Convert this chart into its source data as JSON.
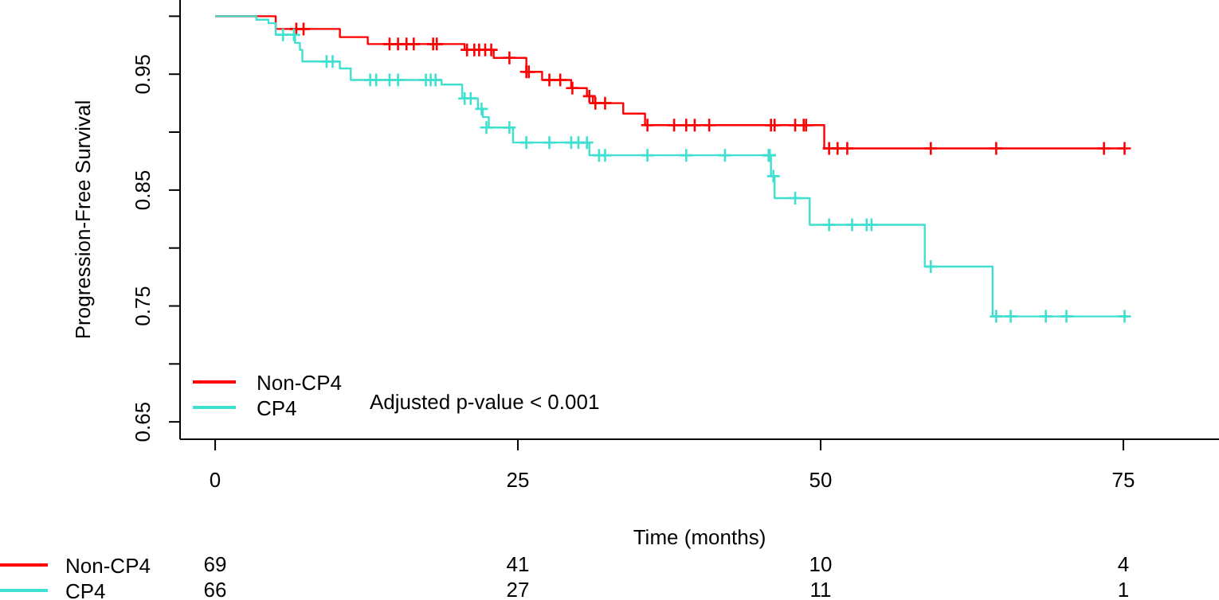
{
  "chart_data": {
    "type": "step",
    "xlabel": "Time (months)",
    "ylabel": "Progression-Free Survival",
    "xlim": [
      -2.9,
      82.9
    ],
    "xticks": [
      0,
      25,
      50,
      75
    ],
    "ylim": [
      0.635,
      1.014
    ],
    "yticks": [
      0.65,
      {
        "value": 0.7,
        "label": null
      },
      0.75,
      {
        "value": 0.8,
        "label": null
      },
      0.85,
      {
        "value": 0.9,
        "label": null
      },
      0.95,
      {
        "value": 1.0,
        "label": null
      }
    ],
    "legend": "bottom left",
    "grid": false,
    "line_style": "solid",
    "series": [
      {
        "name": "Non-CP4",
        "color": "#ff0000",
        "marker": "none",
        "x": [
          0,
          5.0,
          10.3,
          12.6,
          20.6,
          23.0,
          25.7,
          27.0,
          29.4,
          30.7,
          31.2,
          33.7,
          35.5,
          50.3,
          75.1
        ],
        "values": [
          1.0,
          0.989,
          0.982,
          0.976,
          0.971,
          0.964,
          0.952,
          0.945,
          0.938,
          0.931,
          0.925,
          0.916,
          0.906,
          0.886,
          0.886
        ]
      },
      {
        "name": "CP4",
        "color": "#40e0d0",
        "marker": "none",
        "x": [
          0,
          3.4,
          4.4,
          5.0,
          6.6,
          7.0,
          7.2,
          10.3,
          11.2,
          18.7,
          20.4,
          21.7,
          22.1,
          22.6,
          24.6,
          30.9,
          45.9,
          46.2,
          49.1,
          58.6,
          64.2,
          75.1
        ],
        "values": [
          1.0,
          0.997,
          0.994,
          0.984,
          0.977,
          0.971,
          0.961,
          0.955,
          0.945,
          0.941,
          0.929,
          0.92,
          0.913,
          0.904,
          0.891,
          0.88,
          0.862,
          0.843,
          0.82,
          0.784,
          0.741,
          0.741
        ]
      },
      {
        "color": "#ff0000",
        "type": "scatter",
        "marker": "cross",
        "x": [
          6.7,
          7.3,
          14.4,
          15.1,
          15.8,
          16.4,
          18.0,
          18.3,
          20.8,
          21.4,
          21.8,
          22.3,
          22.8,
          24.3,
          25.7,
          25.9,
          27.6,
          28.5,
          29.5,
          30.9,
          31.4,
          32.2,
          35.7,
          37.9,
          38.9,
          39.6,
          40.8,
          45.9,
          46.2,
          47.9,
          48.6,
          48.8,
          50.7,
          51.4,
          52.2,
          59.1,
          64.5,
          73.4,
          75.1
        ],
        "values": [
          0.989,
          0.989,
          0.976,
          0.976,
          0.976,
          0.976,
          0.976,
          0.976,
          0.971,
          0.971,
          0.971,
          0.971,
          0.971,
          0.964,
          0.952,
          0.952,
          0.945,
          0.945,
          0.938,
          0.931,
          0.925,
          0.925,
          0.906,
          0.906,
          0.906,
          0.906,
          0.906,
          0.906,
          0.906,
          0.906,
          0.906,
          0.906,
          0.886,
          0.886,
          0.886,
          0.886,
          0.886,
          0.886,
          0.886
        ]
      },
      {
        "color": "#40e0d0",
        "type": "scatter",
        "marker": "cross",
        "x": [
          5.6,
          6.5,
          9.2,
          9.7,
          12.8,
          13.3,
          14.4,
          15.1,
          17.4,
          17.8,
          18.2,
          20.6,
          21.1,
          22.0,
          22.4,
          24.3,
          25.7,
          27.6,
          29.4,
          30.0,
          30.7,
          31.7,
          32.2,
          35.7,
          38.9,
          42.1,
          45.7,
          45.8,
          46.1,
          47.9,
          50.7,
          52.6,
          53.8,
          54.2,
          59.1,
          64.5,
          65.7,
          68.6,
          70.3,
          75.1
        ],
        "values": [
          0.984,
          0.984,
          0.961,
          0.961,
          0.945,
          0.945,
          0.945,
          0.945,
          0.945,
          0.945,
          0.945,
          0.929,
          0.929,
          0.92,
          0.904,
          0.904,
          0.891,
          0.891,
          0.891,
          0.891,
          0.891,
          0.88,
          0.88,
          0.88,
          0.88,
          0.88,
          0.88,
          0.88,
          0.862,
          0.843,
          0.82,
          0.82,
          0.82,
          0.82,
          0.784,
          0.741,
          0.741,
          0.741,
          0.741,
          0.741
        ]
      }
    ],
    "annotations": [
      "Adjusted p-value < 0.001",
      "69",
      "41",
      "10",
      "4",
      "66",
      "27",
      "11",
      "1"
    ]
  }
}
